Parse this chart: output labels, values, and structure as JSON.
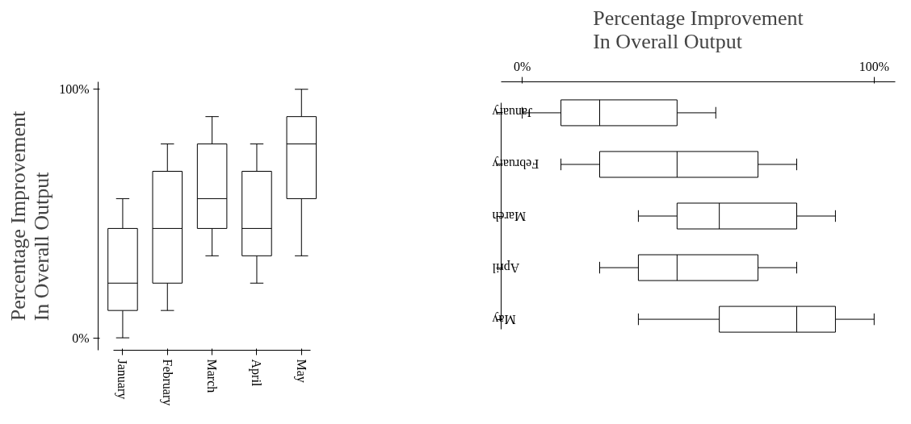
{
  "chart_data": [
    {
      "type": "box",
      "title": "Percentage Improvement\nIn Overall Output",
      "categories": [
        "January",
        "February",
        "March",
        "April",
        "May"
      ],
      "boxes": [
        {
          "low": 0,
          "q1": 11,
          "median": 22,
          "q3": 44,
          "high": 56
        },
        {
          "low": 11,
          "q1": 22,
          "median": 44,
          "q3": 67,
          "high": 78
        },
        {
          "low": 33,
          "q1": 44,
          "median": 56,
          "q3": 78,
          "high": 89
        },
        {
          "low": 22,
          "q1": 33,
          "median": 44,
          "q3": 67,
          "high": 78
        },
        {
          "low": 33,
          "q1": 56,
          "median": 78,
          "q3": 89,
          "high": 100
        }
      ],
      "ylim": [
        -5,
        103
      ],
      "yticks": [
        {
          "value": 0,
          "label": "0%"
        },
        {
          "value": 100,
          "label": "100%"
        }
      ],
      "grid": false
    },
    {
      "type": "box",
      "orientation": "horizontal",
      "title": "Percentage Improvement\nIn Overall Output",
      "categories": [
        "January",
        "February",
        "March",
        "April",
        "May"
      ],
      "boxes": [
        {
          "low": 0,
          "q1": 11,
          "median": 22,
          "q3": 44,
          "high": 55
        },
        {
          "low": 11,
          "q1": 22,
          "median": 44,
          "q3": 67,
          "high": 78
        },
        {
          "low": 33,
          "q1": 44,
          "median": 56,
          "q3": 78,
          "high": 89
        },
        {
          "low": 22,
          "q1": 33,
          "median": 44,
          "q3": 67,
          "high": 78
        },
        {
          "low": 33,
          "q1": 56,
          "median": 78,
          "q3": 89,
          "high": 100
        }
      ],
      "xlim": [
        -6,
        106
      ],
      "xticks": [
        {
          "value": 0,
          "label": "0%"
        },
        {
          "value": 100,
          "label": "100%"
        }
      ],
      "grid": false
    }
  ]
}
